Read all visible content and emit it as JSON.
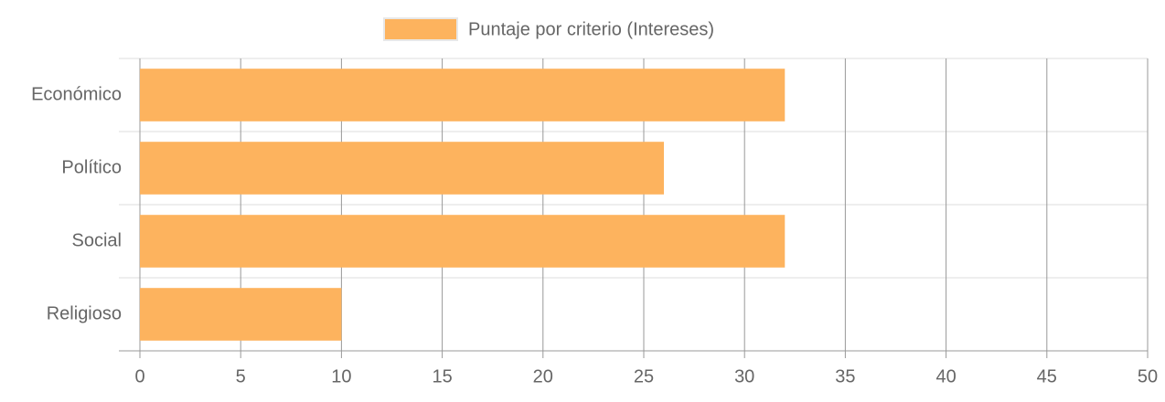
{
  "chart_data": {
    "type": "bar",
    "orientation": "horizontal",
    "categories": [
      "Económico",
      "Político",
      "Social",
      "Religioso"
    ],
    "series": [
      {
        "name": "Puntaje por criterio (Intereses)",
        "color": "#fdb35e",
        "values": [
          32,
          26,
          32,
          10
        ]
      }
    ],
    "xlim": [
      0,
      50
    ],
    "xticks": [
      0,
      5,
      10,
      15,
      20,
      25,
      30,
      35,
      40,
      45,
      50
    ],
    "grid": true,
    "legend": "top"
  }
}
